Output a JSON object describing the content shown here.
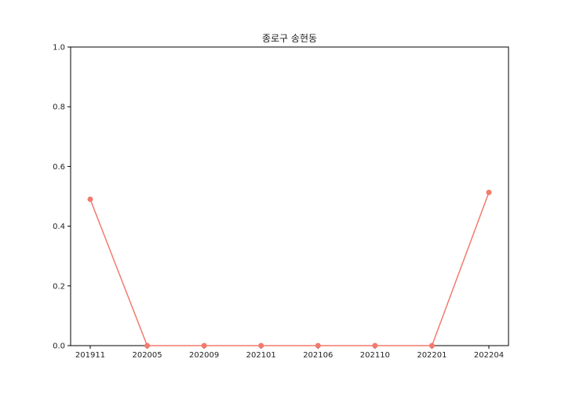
{
  "chart_data": {
    "type": "line",
    "title": "종로구 송현동",
    "xlabel": "",
    "ylabel": "",
    "categories": [
      "201911",
      "202005",
      "202009",
      "202101",
      "202106",
      "202110",
      "202201",
      "202204"
    ],
    "series": [
      {
        "values": [
          0.49,
          0.0,
          0.0,
          0.0,
          0.0,
          0.0,
          0.0,
          0.513
        ]
      }
    ],
    "ylim": [
      0,
      1.0
    ],
    "yticks": [
      "0.0",
      "0.2",
      "0.4",
      "0.6",
      "0.8",
      "1.0"
    ],
    "grid": false,
    "color": "#f27b6e"
  }
}
